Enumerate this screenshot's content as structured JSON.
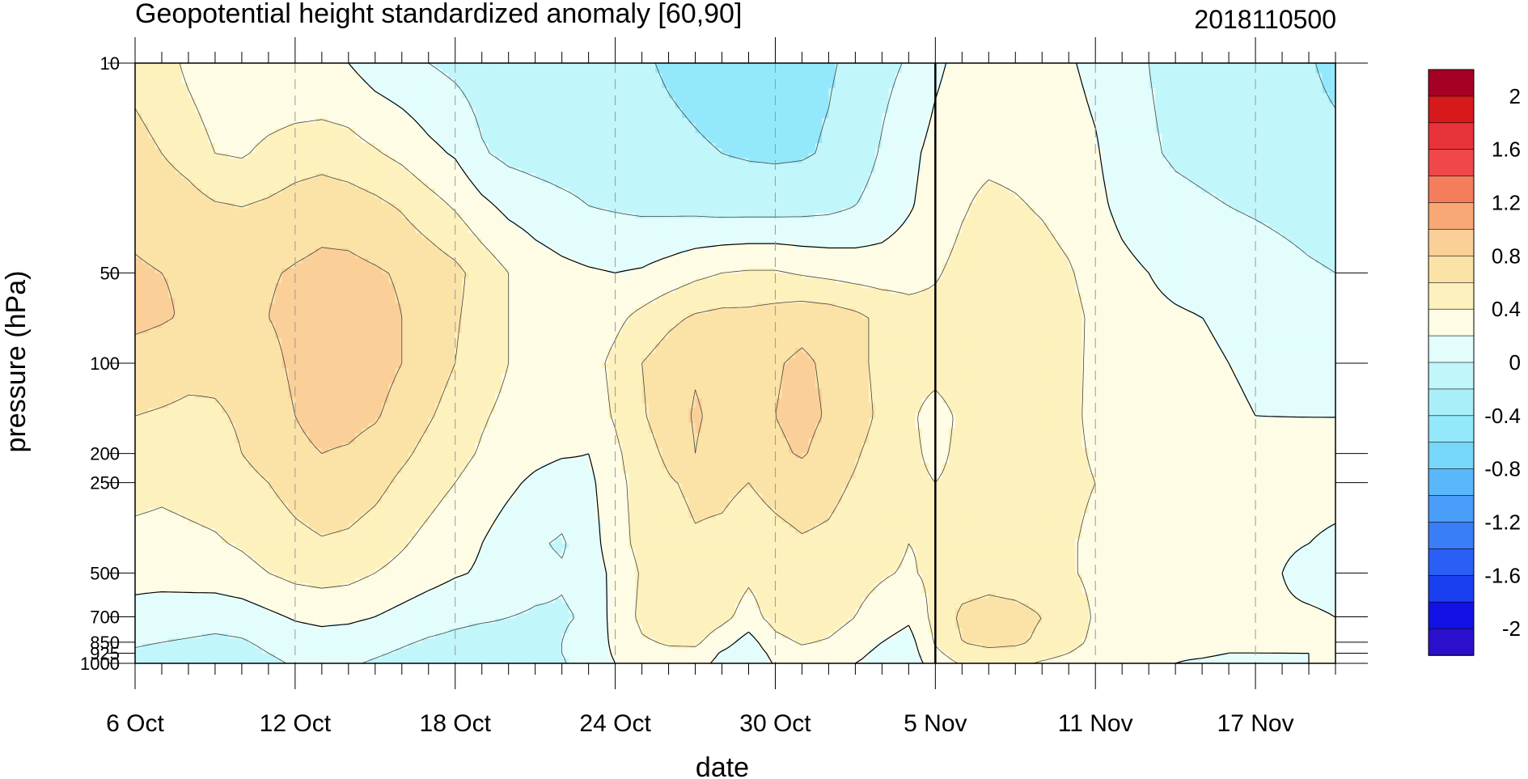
{
  "chart_data": {
    "type": "heatmap",
    "title": "Geopotential height standardized anomaly [60,90]",
    "date_stamp": "2018110500",
    "xlabel": "date",
    "ylabel": "pressure (hPa)",
    "x_tick_labels": [
      "6 Oct",
      "12 Oct",
      "18 Oct",
      "24 Oct",
      "30 Oct",
      "5 Nov",
      "11 Nov",
      "17 Nov"
    ],
    "x_tick_days": [
      0,
      6,
      12,
      18,
      24,
      30,
      36,
      42
    ],
    "x_range_days": [
      0,
      45
    ],
    "current_day_marker": 30,
    "y_scale": "log",
    "y_range": [
      10,
      1000
    ],
    "y_tick_labels": [
      "10",
      "50",
      "100",
      "200",
      "250",
      "500",
      "700",
      "850",
      "925",
      "1000"
    ],
    "y_tick_values": [
      10,
      50,
      100,
      200,
      250,
      500,
      700,
      850,
      925,
      1000
    ],
    "colorbar": {
      "labels": [
        "2",
        "1.6",
        "1.2",
        "0.8",
        "0.4",
        "0",
        "-0.4",
        "-0.8",
        "-1.2",
        "-1.6",
        "-2"
      ],
      "colors": [
        "#a50026",
        "#d7191c",
        "#e8323a",
        "#f04848",
        "#f47d5c",
        "#f8a875",
        "#fbcf98",
        "#fbe3a7",
        "#fdf1bd",
        "#fefce5",
        "#e3fdfd",
        "#c1f6fb",
        "#a9eff9",
        "#94e8fb",
        "#77d7fa",
        "#5ab8fa",
        "#4a9df8",
        "#3a7ef7",
        "#2a5ff5",
        "#1a3ff0",
        "#1212e6",
        "#2a10cc"
      ]
    },
    "grid": {
      "vertical_dashed_at_ticks": true
    },
    "contour_levels": [
      -0.4,
      -0.2,
      0,
      0.2,
      0.4,
      0.6
    ],
    "contour_fills": {
      "le_-0.4": "#94e8fb",
      "-0.4_-0.2": "#c1f6fb",
      "-0.2_0": "#e3fdfd",
      "0_0.2": "#fefce5",
      "0.2_0.4": "#fdf1bd",
      "0.4_0.6": "#fbe3a7",
      "ge_0.6": "#fbcf98"
    },
    "anomaly_rows": [
      {
        "p": 10,
        "v": [
          0.35,
          0.3,
          0.15,
          0.05,
          0.0,
          0.0,
          0.0,
          0.0,
          0.0,
          -0.1,
          -0.15,
          -0.2,
          -0.25,
          -0.3,
          -0.3,
          -0.3,
          -0.3,
          -0.3,
          -0.35,
          -0.38,
          -0.42,
          -0.45,
          -0.48,
          -0.5,
          -0.5,
          -0.45,
          -0.42,
          -0.36,
          -0.26,
          -0.18,
          -0.04,
          0.06,
          0.1,
          0.1,
          0.05,
          0.02,
          -0.05,
          -0.1,
          -0.2,
          -0.25,
          -0.25,
          -0.26,
          -0.28,
          -0.32,
          -0.38,
          -0.46
        ]
      },
      {
        "p": 20,
        "v": [
          0.45,
          0.4,
          0.32,
          0.2,
          0.18,
          0.25,
          0.3,
          0.32,
          0.28,
          0.22,
          0.15,
          0.05,
          -0.02,
          -0.18,
          -0.25,
          -0.28,
          -0.3,
          -0.3,
          -0.32,
          -0.34,
          -0.36,
          -0.38,
          -0.4,
          -0.42,
          -0.43,
          -0.42,
          -0.38,
          -0.3,
          -0.18,
          -0.05,
          0.06,
          0.13,
          0.15,
          0.14,
          0.12,
          0.08,
          0.02,
          -0.1,
          -0.18,
          -0.22,
          -0.24,
          -0.26,
          -0.28,
          -0.3,
          -0.32,
          -0.34
        ]
      },
      {
        "p": 30,
        "v": [
          0.55,
          0.52,
          0.48,
          0.42,
          0.4,
          0.43,
          0.48,
          0.52,
          0.5,
          0.45,
          0.38,
          0.28,
          0.18,
          0.05,
          -0.05,
          -0.1,
          -0.15,
          -0.2,
          -0.22,
          -0.24,
          -0.25,
          -0.26,
          -0.28,
          -0.28,
          -0.28,
          -0.27,
          -0.25,
          -0.2,
          -0.12,
          -0.02,
          0.08,
          0.18,
          0.25,
          0.22,
          0.18,
          0.12,
          0.05,
          -0.05,
          -0.12,
          -0.16,
          -0.18,
          -0.2,
          -0.22,
          -0.24,
          -0.26,
          -0.28
        ]
      },
      {
        "p": 50,
        "v": [
          0.62,
          0.6,
          0.58,
          0.55,
          0.55,
          0.58,
          0.62,
          0.65,
          0.65,
          0.62,
          0.58,
          0.52,
          0.45,
          0.32,
          0.2,
          0.1,
          0.05,
          0.02,
          0.0,
          0.02,
          0.08,
          0.15,
          0.2,
          0.22,
          0.22,
          0.18,
          0.15,
          0.12,
          0.1,
          0.12,
          0.18,
          0.26,
          0.3,
          0.3,
          0.28,
          0.22,
          0.12,
          0.05,
          0.0,
          -0.05,
          -0.08,
          -0.1,
          -0.12,
          -0.15,
          -0.18,
          -0.2
        ]
      },
      {
        "p": 70,
        "v": [
          0.65,
          0.62,
          0.58,
          0.56,
          0.56,
          0.6,
          0.66,
          0.7,
          0.7,
          0.66,
          0.6,
          0.52,
          0.42,
          0.32,
          0.2,
          0.12,
          0.08,
          0.08,
          0.15,
          0.25,
          0.35,
          0.42,
          0.45,
          0.45,
          0.48,
          0.52,
          0.5,
          0.44,
          0.36,
          0.28,
          0.26,
          0.28,
          0.32,
          0.34,
          0.32,
          0.26,
          0.16,
          0.08,
          0.04,
          0.02,
          0.0,
          -0.02,
          -0.05,
          -0.08,
          -0.12,
          -0.15
        ]
      },
      {
        "p": 100,
        "v": [
          0.52,
          0.5,
          0.46,
          0.44,
          0.46,
          0.54,
          0.64,
          0.7,
          0.72,
          0.68,
          0.6,
          0.5,
          0.4,
          0.3,
          0.2,
          0.12,
          0.1,
          0.12,
          0.25,
          0.4,
          0.5,
          0.58,
          0.52,
          0.45,
          0.58,
          0.64,
          0.56,
          0.45,
          0.35,
          0.24,
          0.24,
          0.26,
          0.3,
          0.32,
          0.3,
          0.25,
          0.16,
          0.1,
          0.06,
          0.03,
          0.02,
          0.0,
          -0.02,
          -0.05,
          -0.08,
          -0.1
        ]
      },
      {
        "p": 150,
        "v": [
          0.4,
          0.38,
          0.36,
          0.38,
          0.42,
          0.5,
          0.6,
          0.66,
          0.66,
          0.62,
          0.52,
          0.42,
          0.32,
          0.22,
          0.15,
          0.1,
          0.08,
          0.1,
          0.22,
          0.38,
          0.5,
          0.62,
          0.55,
          0.45,
          0.6,
          0.66,
          0.58,
          0.48,
          0.36,
          0.22,
          0.16,
          0.22,
          0.28,
          0.3,
          0.28,
          0.24,
          0.16,
          0.1,
          0.08,
          0.05,
          0.03,
          0.02,
          0.0,
          0.0,
          0.0,
          0.0
        ]
      },
      {
        "p": 200,
        "v": [
          0.3,
          0.28,
          0.3,
          0.34,
          0.4,
          0.5,
          0.56,
          0.6,
          0.58,
          0.52,
          0.44,
          0.34,
          0.26,
          0.18,
          0.12,
          0.06,
          0.02,
          0.0,
          0.16,
          0.32,
          0.44,
          0.6,
          0.5,
          0.44,
          0.56,
          0.62,
          0.52,
          0.42,
          0.32,
          0.22,
          0.18,
          0.22,
          0.26,
          0.28,
          0.26,
          0.24,
          0.18,
          0.12,
          0.08,
          0.06,
          0.04,
          0.02,
          0.02,
          0.02,
          0.02,
          0.02
        ]
      },
      {
        "p": 250,
        "v": [
          0.26,
          0.24,
          0.26,
          0.28,
          0.32,
          0.4,
          0.48,
          0.54,
          0.52,
          0.46,
          0.36,
          0.28,
          0.2,
          0.12,
          0.04,
          -0.04,
          -0.1,
          -0.05,
          0.14,
          0.28,
          0.38,
          0.44,
          0.44,
          0.4,
          0.46,
          0.5,
          0.46,
          0.38,
          0.3,
          0.22,
          0.2,
          0.22,
          0.25,
          0.26,
          0.26,
          0.24,
          0.2,
          0.14,
          0.1,
          0.08,
          0.06,
          0.04,
          0.04,
          0.04,
          0.04,
          0.04
        ]
      },
      {
        "p": 400,
        "v": [
          0.15,
          0.14,
          0.16,
          0.18,
          0.22,
          0.28,
          0.34,
          0.38,
          0.36,
          0.3,
          0.22,
          0.14,
          0.06,
          0.0,
          -0.1,
          -0.18,
          -0.22,
          -0.1,
          0.12,
          0.26,
          0.32,
          0.38,
          0.36,
          0.3,
          0.34,
          0.38,
          0.36,
          0.3,
          0.26,
          0.2,
          0.22,
          0.26,
          0.28,
          0.28,
          0.26,
          0.22,
          0.16,
          0.1,
          0.06,
          0.04,
          0.03,
          0.02,
          0.02,
          0.02,
          0.0,
          -0.02
        ]
      },
      {
        "p": 500,
        "v": [
          0.05,
          0.06,
          0.08,
          0.1,
          0.14,
          0.2,
          0.26,
          0.28,
          0.26,
          0.2,
          0.14,
          0.08,
          0.02,
          -0.02,
          -0.08,
          -0.14,
          -0.18,
          -0.12,
          0.06,
          0.22,
          0.3,
          0.36,
          0.32,
          0.24,
          0.3,
          0.36,
          0.32,
          0.26,
          0.22,
          0.18,
          0.24,
          0.3,
          0.32,
          0.3,
          0.28,
          0.22,
          0.16,
          0.1,
          0.06,
          0.04,
          0.02,
          0.02,
          0.02,
          0.0,
          -0.05,
          -0.06
        ]
      },
      {
        "p": 700,
        "v": [
          -0.05,
          -0.08,
          -0.1,
          -0.12,
          -0.1,
          -0.04,
          0.02,
          0.05,
          0.04,
          0.0,
          -0.06,
          -0.12,
          -0.16,
          -0.18,
          -0.2,
          -0.22,
          -0.22,
          -0.18,
          0.08,
          0.24,
          0.3,
          0.34,
          0.26,
          0.12,
          0.28,
          0.34,
          0.3,
          0.2,
          0.12,
          0.04,
          0.26,
          0.44,
          0.48,
          0.46,
          0.4,
          0.3,
          0.18,
          0.1,
          0.06,
          0.04,
          0.02,
          0.02,
          0.02,
          0.02,
          0.02,
          0.0
        ]
      },
      {
        "p": 850,
        "v": [
          -0.18,
          -0.2,
          -0.22,
          -0.24,
          -0.22,
          -0.16,
          -0.1,
          -0.08,
          -0.1,
          -0.14,
          -0.18,
          -0.22,
          -0.24,
          -0.26,
          -0.24,
          -0.22,
          -0.2,
          -0.12,
          0.04,
          0.18,
          0.22,
          0.24,
          0.08,
          -0.08,
          0.14,
          0.22,
          0.18,
          0.08,
          0.0,
          -0.08,
          0.22,
          0.4,
          0.46,
          0.44,
          0.36,
          0.26,
          0.16,
          0.08,
          0.06,
          0.04,
          0.02,
          0.02,
          0.02,
          0.02,
          0.02,
          0.02
        ]
      },
      {
        "p": 925,
        "v": [
          -0.22,
          -0.24,
          -0.26,
          -0.28,
          -0.26,
          -0.2,
          -0.14,
          -0.12,
          -0.14,
          -0.18,
          -0.22,
          -0.26,
          -0.28,
          -0.3,
          -0.28,
          -0.24,
          -0.2,
          -0.1,
          0.02,
          0.12,
          0.16,
          0.14,
          -0.02,
          -0.12,
          0.06,
          0.14,
          0.12,
          0.04,
          -0.04,
          -0.1,
          0.16,
          0.3,
          0.34,
          0.32,
          0.26,
          0.2,
          0.12,
          0.06,
          0.04,
          0.02,
          0.02,
          0.0,
          0.0,
          0.0,
          0.0,
          0.0
        ]
      },
      {
        "p": 1000,
        "v": [
          -0.26,
          -0.28,
          -0.3,
          -0.32,
          -0.3,
          -0.24,
          -0.18,
          -0.16,
          -0.18,
          -0.22,
          -0.26,
          -0.3,
          -0.32,
          -0.34,
          -0.32,
          -0.26,
          -0.22,
          -0.1,
          0.0,
          0.08,
          0.1,
          0.08,
          -0.06,
          -0.16,
          0.02,
          0.08,
          0.06,
          0.0,
          -0.06,
          -0.12,
          0.1,
          0.22,
          0.26,
          0.24,
          0.18,
          0.14,
          0.08,
          0.04,
          0.02,
          0.0,
          -0.02,
          -0.04,
          -0.04,
          -0.02,
          0.0,
          0.0
        ]
      }
    ]
  }
}
